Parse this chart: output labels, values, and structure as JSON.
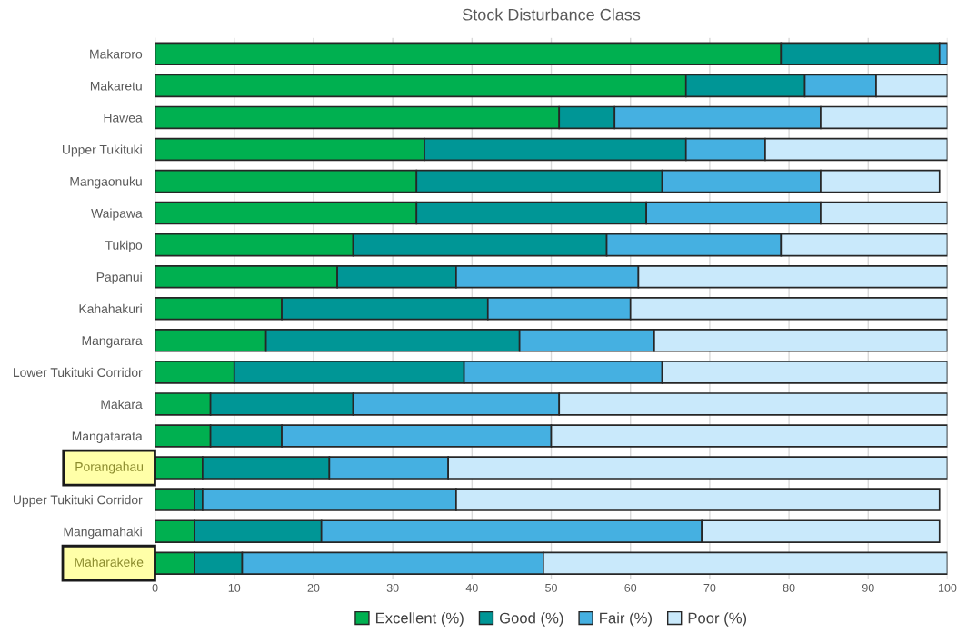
{
  "chart_data": {
    "type": "bar",
    "orientation": "horizontal",
    "stacked": true,
    "title": "Stock Disturbance Class",
    "categories": [
      "Makaroro",
      "Makaretu",
      "Hawea",
      "Upper Tukituki",
      "Mangaonuku",
      "Waipawa",
      "Tukipo",
      "Papanui",
      "Kahahakuri",
      "Mangarara",
      "Lower Tukituki Corridor",
      "Makara",
      "Mangatarata",
      "Porangahau",
      "Upper Tukituki Corridor",
      "Mangamahaki",
      "Maharakeke"
    ],
    "series": [
      {
        "name": "Excellent (%)",
        "color": "#00b050",
        "values": [
          79,
          67,
          51,
          34,
          33,
          33,
          25,
          23,
          16,
          14,
          10,
          7,
          7,
          6,
          5,
          5,
          5
        ]
      },
      {
        "name": "Good (%)",
        "color": "#009696",
        "values": [
          20,
          15,
          7,
          33,
          31,
          29,
          32,
          15,
          26,
          32,
          29,
          18,
          9,
          16,
          1,
          16,
          6
        ]
      },
      {
        "name": "Fair (%)",
        "color": "#45b0e1",
        "values": [
          1,
          9,
          26,
          10,
          20,
          22,
          22,
          23,
          18,
          17,
          25,
          26,
          34,
          15,
          32,
          48,
          38
        ]
      },
      {
        "name": "Poor (%)",
        "color": "#c9e9fb",
        "values": [
          0,
          9,
          16,
          23,
          15,
          16,
          21,
          39,
          40,
          37,
          36,
          49,
          50,
          63,
          61,
          30,
          51
        ]
      }
    ],
    "xlim": [
      0,
      100
    ],
    "xticks": [
      0,
      10,
      20,
      30,
      40,
      50,
      60,
      70,
      80,
      90,
      100
    ],
    "grid": "x",
    "legend": "bottom",
    "annotations": [
      "Porangahau",
      "Maharakeke"
    ]
  }
}
